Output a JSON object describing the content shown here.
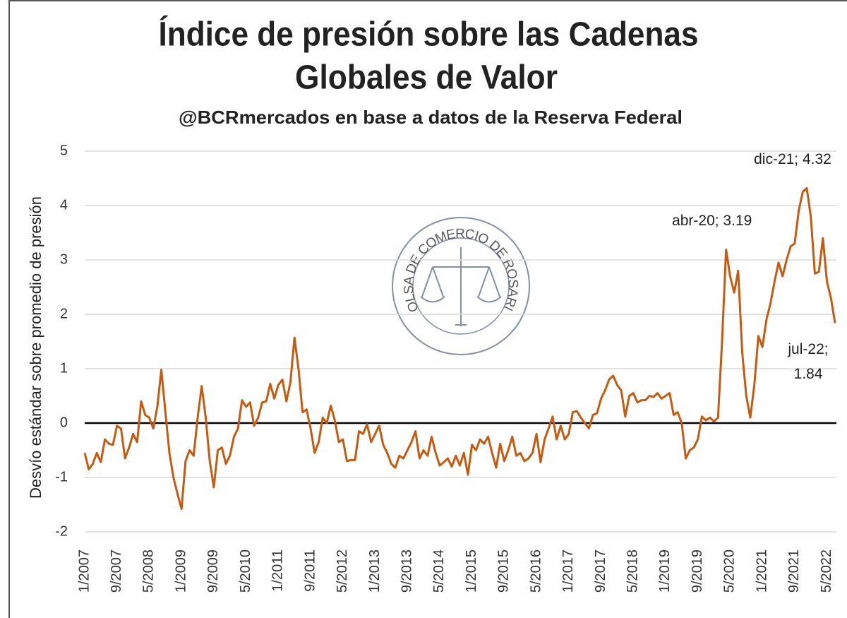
{
  "chart_data": {
    "type": "line",
    "title": [
      "Índice de presión sobre las Cadenas",
      "Globales de Valor"
    ],
    "subtitle": "@BCRmercados en base a datos de la Reserva Federal",
    "y_label": "Desvío estándar sobre promedio de presión",
    "watermark": "BOLSA DE COMERCIO DE ROSARIO",
    "ylim": [
      -2,
      5
    ],
    "yticks": [
      -2,
      -1,
      0,
      1,
      2,
      3,
      4,
      5
    ],
    "grid": true,
    "categories": [
      "1/2007",
      null,
      null,
      null,
      null,
      null,
      null,
      null,
      "9/2007",
      null,
      null,
      null,
      null,
      null,
      null,
      null,
      "5/2008",
      null,
      null,
      null,
      null,
      null,
      null,
      null,
      "1/2009",
      null,
      null,
      null,
      null,
      null,
      null,
      null,
      "9/2009",
      null,
      null,
      null,
      null,
      null,
      null,
      null,
      "5/2010",
      null,
      null,
      null,
      null,
      null,
      null,
      null,
      "1/2011",
      null,
      null,
      null,
      null,
      null,
      null,
      null,
      "9/2011",
      null,
      null,
      null,
      null,
      null,
      null,
      null,
      "5/2012",
      null,
      null,
      null,
      null,
      null,
      null,
      null,
      "1/2013",
      null,
      null,
      null,
      null,
      null,
      null,
      null,
      "9/2013",
      null,
      null,
      null,
      null,
      null,
      null,
      null,
      "5/2014",
      null,
      null,
      null,
      null,
      null,
      null,
      null,
      "1/2015",
      null,
      null,
      null,
      null,
      null,
      null,
      null,
      "9/2015",
      null,
      null,
      null,
      null,
      null,
      null,
      null,
      "5/2016",
      null,
      null,
      null,
      null,
      null,
      null,
      null,
      "1/2017",
      null,
      null,
      null,
      null,
      null,
      null,
      null,
      "9/2017",
      null,
      null,
      null,
      null,
      null,
      null,
      null,
      "5/2018",
      null,
      null,
      null,
      null,
      null,
      null,
      null,
      "1/2019",
      null,
      null,
      null,
      null,
      null,
      null,
      null,
      "9/2019",
      null,
      null,
      null,
      null,
      null,
      null,
      null,
      "5/2020",
      null,
      null,
      null,
      null,
      null,
      null,
      null,
      "1/2021",
      null,
      null,
      null,
      null,
      null,
      null,
      null,
      "9/2021",
      null,
      null,
      null,
      null,
      null,
      null,
      null,
      "5/2022",
      null,
      null
    ],
    "series": [
      {
        "color": "#c55a11",
        "values": [
          -0.55,
          -0.85,
          -0.75,
          -0.55,
          -0.72,
          -0.3,
          -0.38,
          -0.4,
          -0.05,
          -0.1,
          -0.65,
          -0.45,
          -0.2,
          -0.35,
          0.4,
          0.15,
          0.1,
          -0.1,
          0.3,
          0.98,
          0.2,
          -0.55,
          -1.0,
          -1.3,
          -1.58,
          -0.7,
          -0.5,
          -0.6,
          0.1,
          0.68,
          0.1,
          -0.7,
          -1.18,
          -0.5,
          -0.45,
          -0.75,
          -0.6,
          -0.25,
          -0.1,
          0.42,
          0.3,
          0.38,
          -0.05,
          0.1,
          0.38,
          0.4,
          0.72,
          0.45,
          0.7,
          0.8,
          0.4,
          0.75,
          1.57,
          1.0,
          0.2,
          0.25,
          -0.1,
          -0.55,
          -0.35,
          0.1,
          0.0,
          0.32,
          0.05,
          -0.35,
          -0.3,
          -0.7,
          -0.68,
          -0.68,
          -0.15,
          -0.2,
          -0.02,
          -0.35,
          -0.2,
          -0.05,
          -0.4,
          -0.55,
          -0.75,
          -0.82,
          -0.6,
          -0.65,
          -0.5,
          -0.35,
          -0.15,
          -0.65,
          -0.5,
          -0.6,
          -0.25,
          -0.55,
          -0.78,
          -0.72,
          -0.65,
          -0.8,
          -0.6,
          -0.78,
          -0.55,
          -0.95,
          -0.4,
          -0.5,
          -0.3,
          -0.38,
          -0.25,
          -0.55,
          -0.82,
          -0.38,
          -0.7,
          -0.5,
          -0.25,
          -0.6,
          -0.55,
          -0.7,
          -0.65,
          -0.55,
          -0.2,
          -0.72,
          -0.3,
          -0.1,
          0.12,
          -0.3,
          -0.05,
          -0.3,
          -0.2,
          0.2,
          0.22,
          0.1,
          0.0,
          -0.1,
          0.15,
          0.18,
          0.45,
          0.6,
          0.8,
          0.87,
          0.7,
          0.6,
          0.12,
          0.5,
          0.55,
          0.38,
          0.42,
          0.42,
          0.5,
          0.48,
          0.55,
          0.45,
          0.5,
          0.55,
          0.15,
          0.2,
          0.0,
          -0.65,
          -0.5,
          -0.45,
          -0.3,
          0.12,
          0.05,
          0.1,
          0.03,
          0.1,
          1.5,
          3.19,
          2.7,
          2.4,
          2.8,
          1.3,
          0.5,
          0.1,
          0.7,
          1.6,
          1.4,
          1.9,
          2.2,
          2.6,
          2.95,
          2.7,
          3.0,
          3.25,
          3.3,
          3.9,
          4.25,
          4.32,
          3.8,
          2.75,
          2.78,
          3.4,
          2.6,
          2.3,
          1.84
        ]
      }
    ],
    "annotations": [
      {
        "lines": [
          "abr-20; 3.19"
        ],
        "index": 159
      },
      {
        "lines": [
          "dic-21; 4.32"
        ],
        "index": 179
      },
      {
        "lines": [
          "jul-22;",
          "1.84"
        ],
        "index": 186
      }
    ]
  }
}
